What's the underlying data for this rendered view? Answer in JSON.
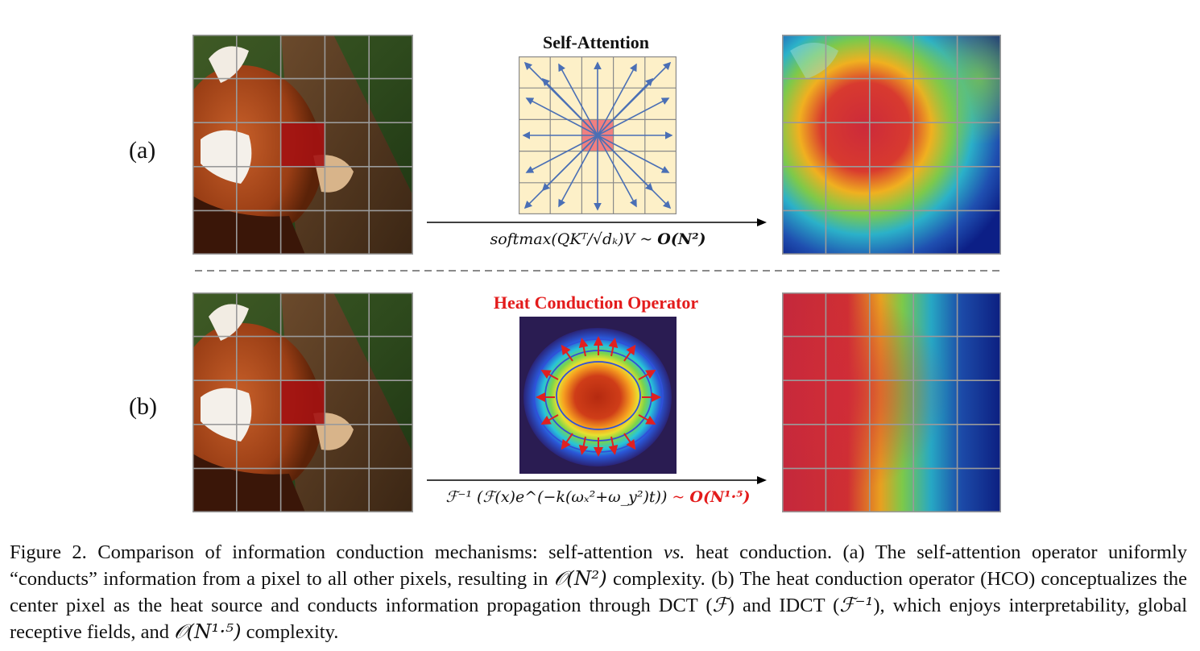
{
  "row_a": {
    "label": "(a)",
    "operator_title": "Self-Attention",
    "formula": "softmax(QKᵀ/√dₖ)V",
    "complexity_sep": "~",
    "complexity": "O(N²)"
  },
  "row_b": {
    "label": "(b)",
    "operator_title": "Heat Conduction Operator",
    "formula": "ℱ⁻¹ (ℱ(x)e^(−k(ωₓ²+ω_y²)t))",
    "complexity_sep": "~",
    "complexity": "O(N¹·⁵)"
  },
  "caption": {
    "part1": "Figure 2. Comparison of information conduction mechanisms: self-attention",
    "vs": "vs.",
    "part2": "heat conduction. (a) The self-attention operator uniformly “conducts” information from a pixel to all other pixels, resulting in",
    "big_o_1": "𝒪(N²)",
    "part3": "complexity. (b) The heat conduction operator (HCO) conceptualizes the center pixel as the heat source and conducts information propagation through DCT (",
    "f_sym": "ℱ",
    "part4": ") and IDCT (",
    "finv_sym": "ℱ⁻¹",
    "part5": "), which enjoys interpretability, global receptive fields, and",
    "big_o_2": "𝒪(N¹·⁵)",
    "part6": "complexity."
  },
  "colors": {
    "title_red": "#e31b1b",
    "grid_cell": "#fdf0c8",
    "arrow_blue": "#4a6fb5",
    "center_pink": "#f08080",
    "highlight_red": "#a41212"
  }
}
